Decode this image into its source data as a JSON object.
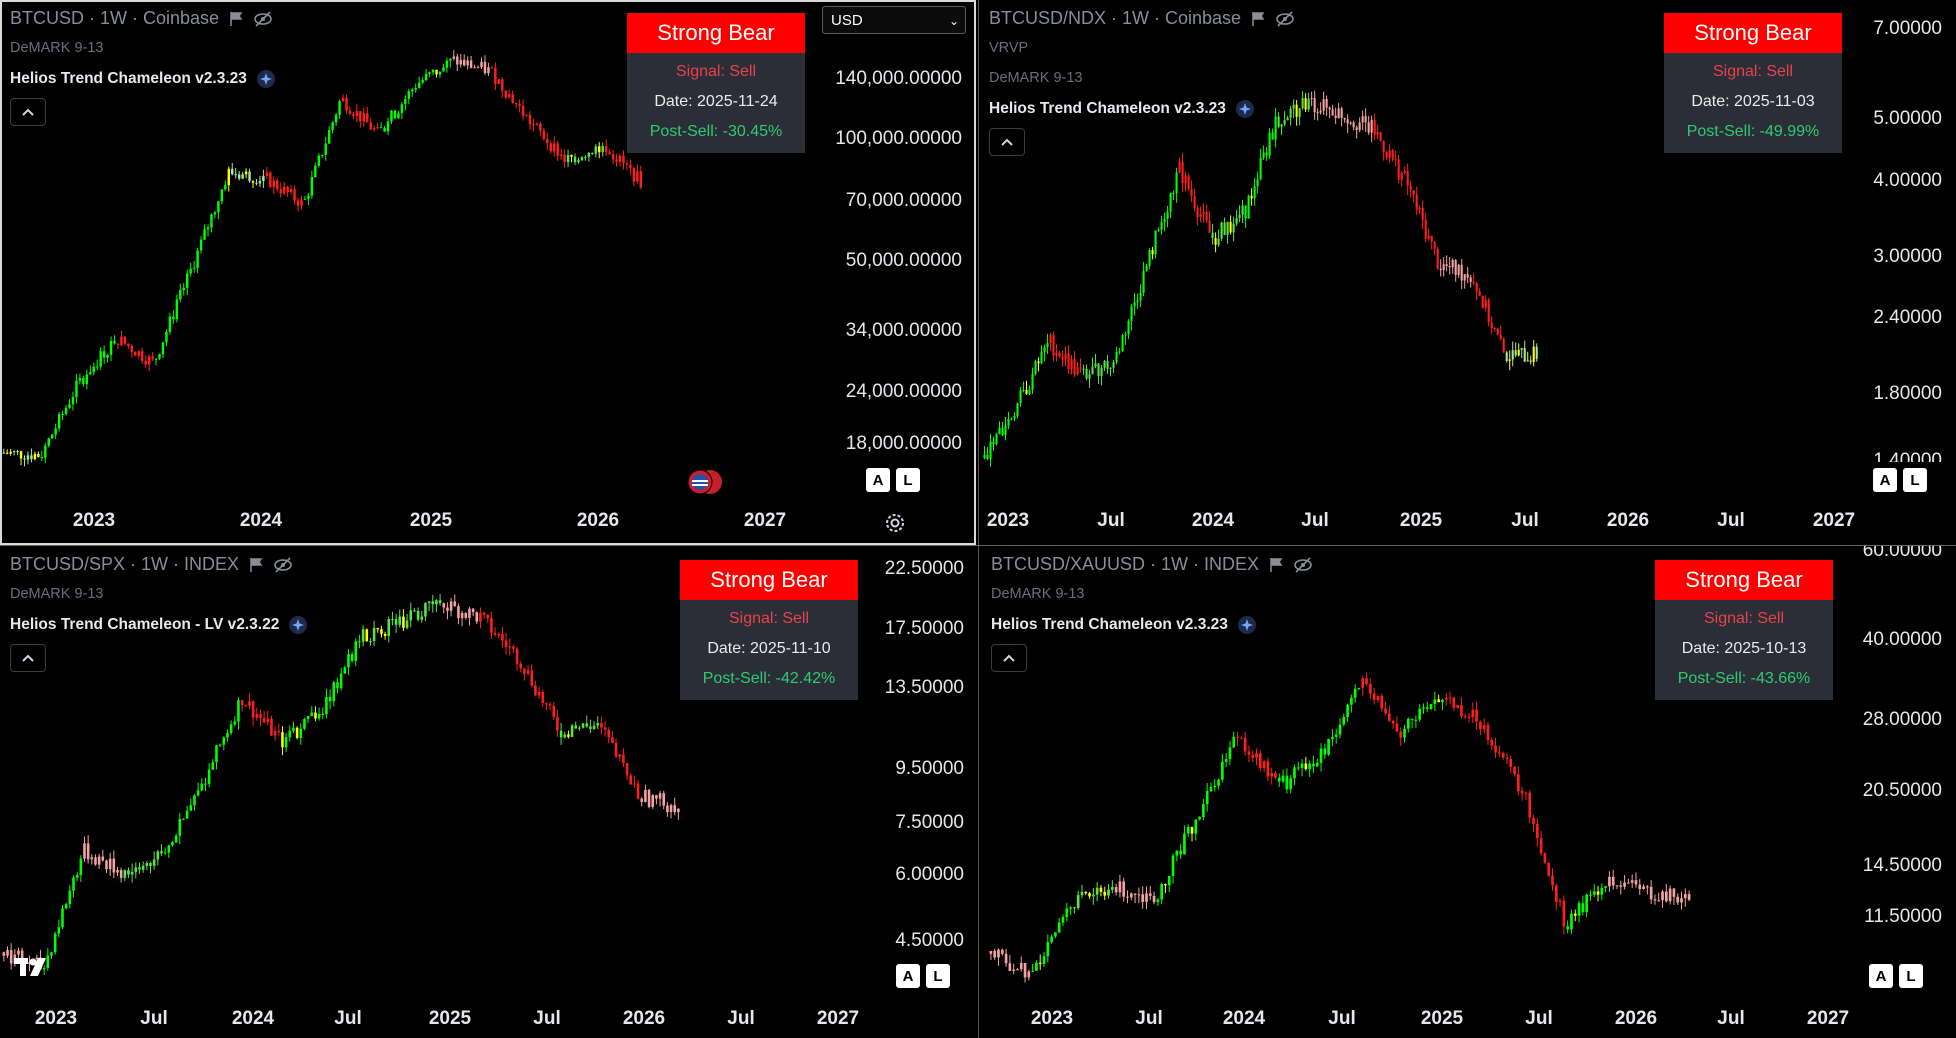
{
  "colors": {
    "strong_bull": "#00ff00",
    "bull": "#55e645",
    "neutral_up": "#a8e6a0",
    "caution": "#ffff00",
    "weak": "#f4a3a3",
    "bear": "#ff1e1e",
    "signal_bg": "#2b2e36",
    "bear_red": "#ff0000"
  },
  "panes": [
    {
      "symbol": "BTCUSD · 1W · Coinbase",
      "ind1": "DeMARK 9-13",
      "ind2": "Helios Trend Chameleon v2.3.23",
      "signal": {
        "title": "Strong Bear",
        "signal": "Signal: Sell",
        "date": "Date: 2025-11-24",
        "post": "Post-Sell: -30.45%"
      },
      "currency": "USD",
      "y_ticks": [
        "140,000.00000",
        "100,000.00000",
        "70,000.00000",
        "50,000.00000",
        "34,000.00000",
        "24,000.00000",
        "18,000.00000"
      ],
      "x_ticks": [
        "2023",
        "2024",
        "2025",
        "2026",
        "2027"
      ]
    },
    {
      "symbol": "BTCUSD/NDX · 1W · Coinbase",
      "ind0": "VRVP",
      "ind1": "DeMARK 9-13",
      "ind2": "Helios Trend Chameleon v2.3.23",
      "signal": {
        "title": "Strong Bear",
        "signal": "Signal: Sell",
        "date": "Date: 2025-11-03",
        "post": "Post-Sell: -49.99%"
      },
      "y_ticks": [
        "7.00000",
        "5.00000",
        "4.00000",
        "3.00000",
        "2.40000",
        "1.80000",
        "1.40000"
      ],
      "x_ticks": [
        "2023",
        "Jul",
        "2024",
        "Jul",
        "2025",
        "Jul",
        "2026",
        "Jul",
        "2027"
      ]
    },
    {
      "symbol": "BTCUSD/SPX · 1W · INDEX",
      "ind1": "DeMARK 9-13",
      "ind2": "Helios Trend Chameleon - LV v2.3.22",
      "signal": {
        "title": "Strong Bear",
        "signal": "Signal: Sell",
        "date": "Date: 2025-11-10",
        "post": "Post-Sell: -42.42%"
      },
      "y_ticks": [
        "22.50000",
        "17.50000",
        "13.50000",
        "9.50000",
        "7.50000",
        "6.00000",
        "4.50000"
      ],
      "x_ticks": [
        "2023",
        "Jul",
        "2024",
        "Jul",
        "2025",
        "Jul",
        "2026",
        "Jul",
        "2027"
      ]
    },
    {
      "symbol": "BTCUSD/XAUUSD · 1W · INDEX",
      "ind1": "DeMARK 9-13",
      "ind2": "Helios Trend Chameleon v2.3.23",
      "signal": {
        "title": "Strong Bear",
        "signal": "Signal: Sell",
        "date": "Date: 2025-10-13",
        "post": "Post-Sell: -43.66%"
      },
      "y_ticks": [
        "60.00000",
        "40.00000",
        "28.00000",
        "20.50000",
        "14.50000",
        "11.50000"
      ],
      "x_ticks": [
        "2023",
        "Jul",
        "2024",
        "Jul",
        "2025",
        "Jul",
        "2026",
        "Jul",
        "2027"
      ]
    }
  ],
  "scale_buttons": {
    "a": "A",
    "l": "L"
  },
  "chart_data": [
    {
      "type": "candlestick",
      "title": "BTCUSD · 1W · Coinbase",
      "x": [
        "2022-11",
        "2023-01",
        "2023-03",
        "2023-06",
        "2023-09",
        "2023-12",
        "2024-03",
        "2024-06",
        "2024-09",
        "2024-12",
        "2025-03",
        "2025-06",
        "2025-08",
        "2025-10",
        "2025-11",
        "2026-01",
        "2026-03",
        "2026-05"
      ],
      "values": [
        17000,
        16800,
        24000,
        30000,
        26500,
        42000,
        68000,
        66000,
        58000,
        98000,
        82000,
        105000,
        118000,
        112000,
        88000,
        72000,
        78000,
        65000
      ],
      "ylim": [
        15000,
        150000
      ]
    },
    {
      "type": "candlestick",
      "title": "BTCUSD/NDX · 1W · Coinbase",
      "x": [
        "2022-11",
        "2023-01",
        "2023-04",
        "2023-07",
        "2023-10",
        "2024-01",
        "2024-04",
        "2024-07",
        "2024-10",
        "2025-01",
        "2025-04",
        "2025-07",
        "2025-09",
        "2025-11",
        "2026-01",
        "2026-04",
        "2026-06",
        "2026-08"
      ],
      "values": [
        1.45,
        1.75,
        2.2,
        1.95,
        2.05,
        2.9,
        4.1,
        3.2,
        3.5,
        4.9,
        5.2,
        5.0,
        4.7,
        3.9,
        2.9,
        2.8,
        2.1,
        2.1
      ],
      "ylim": [
        1.35,
        7.2
      ]
    },
    {
      "type": "candlestick",
      "title": "BTCUSD/SPX · 1W · INDEX",
      "x": [
        "2022-11",
        "2023-01",
        "2023-04",
        "2023-07",
        "2023-10",
        "2024-01",
        "2024-04",
        "2024-07",
        "2024-10",
        "2025-01",
        "2025-04",
        "2025-07",
        "2025-09",
        "2025-11",
        "2026-01",
        "2026-04",
        "2026-06",
        "2026-07"
      ],
      "values": [
        4.6,
        4.3,
        7.0,
        6.4,
        6.8,
        9.2,
        13.2,
        11.0,
        12.5,
        17.0,
        18.0,
        19.5,
        18.4,
        15.5,
        11.5,
        11.8,
        8.8,
        8.4
      ],
      "ylim": [
        4.0,
        23.5
      ]
    },
    {
      "type": "candlestick",
      "title": "BTCUSD/XAUUSD · 1W · INDEX",
      "x": [
        "2022-11",
        "2023-01",
        "2023-04",
        "2023-07",
        "2023-10",
        "2024-01",
        "2024-04",
        "2024-07",
        "2024-10",
        "2025-01",
        "2025-04",
        "2025-07",
        "2025-09",
        "2025-11",
        "2026-01",
        "2026-04",
        "2026-06",
        "2026-07"
      ],
      "values": [
        12.0,
        11.0,
        14.8,
        15.8,
        15.2,
        21.0,
        30.0,
        24.0,
        27.0,
        37.0,
        30.0,
        35.0,
        31.0,
        23.0,
        13.5,
        16.5,
        15.5,
        15.0
      ],
      "ylim": [
        10.5,
        62
      ]
    }
  ]
}
